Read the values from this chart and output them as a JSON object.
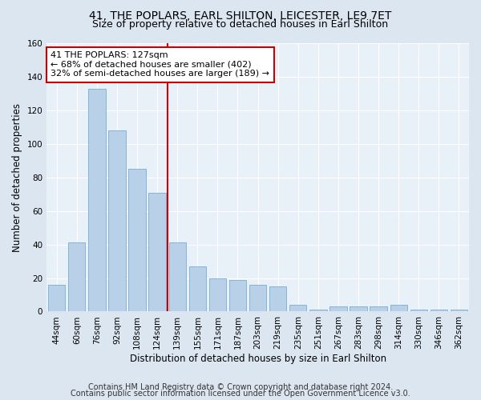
{
  "title": "41, THE POPLARS, EARL SHILTON, LEICESTER, LE9 7ET",
  "subtitle": "Size of property relative to detached houses in Earl Shilton",
  "xlabel": "Distribution of detached houses by size in Earl Shilton",
  "ylabel": "Number of detached properties",
  "categories": [
    "44sqm",
    "60sqm",
    "76sqm",
    "92sqm",
    "108sqm",
    "124sqm",
    "139sqm",
    "155sqm",
    "171sqm",
    "187sqm",
    "203sqm",
    "219sqm",
    "235sqm",
    "251sqm",
    "267sqm",
    "283sqm",
    "298sqm",
    "314sqm",
    "330sqm",
    "346sqm",
    "362sqm"
  ],
  "values": [
    16,
    41,
    133,
    108,
    85,
    71,
    41,
    27,
    20,
    19,
    16,
    15,
    4,
    1,
    3,
    3,
    3,
    4,
    1,
    1,
    1
  ],
  "bar_color": "#b8d0e8",
  "bar_edge_color": "#7aadd4",
  "ylim": [
    0,
    160
  ],
  "yticks": [
    0,
    20,
    40,
    60,
    80,
    100,
    120,
    140,
    160
  ],
  "annotation_text": "41 THE POPLARS: 127sqm\n← 68% of detached houses are smaller (402)\n32% of semi-detached houses are larger (189) →",
  "annotation_box_color": "#ffffff",
  "annotation_box_edge_color": "#cc0000",
  "vline_color": "#cc0000",
  "vline_x_index": 6,
  "footer1": "Contains HM Land Registry data © Crown copyright and database right 2024.",
  "footer2": "Contains public sector information licensed under the Open Government Licence v3.0.",
  "bg_color": "#dce6f0",
  "plot_bg_color": "#e8f0f8",
  "title_fontsize": 10,
  "subtitle_fontsize": 9,
  "tick_fontsize": 7.5,
  "ylabel_fontsize": 8.5,
  "xlabel_fontsize": 8.5,
  "annotation_fontsize": 8,
  "footer_fontsize": 7
}
